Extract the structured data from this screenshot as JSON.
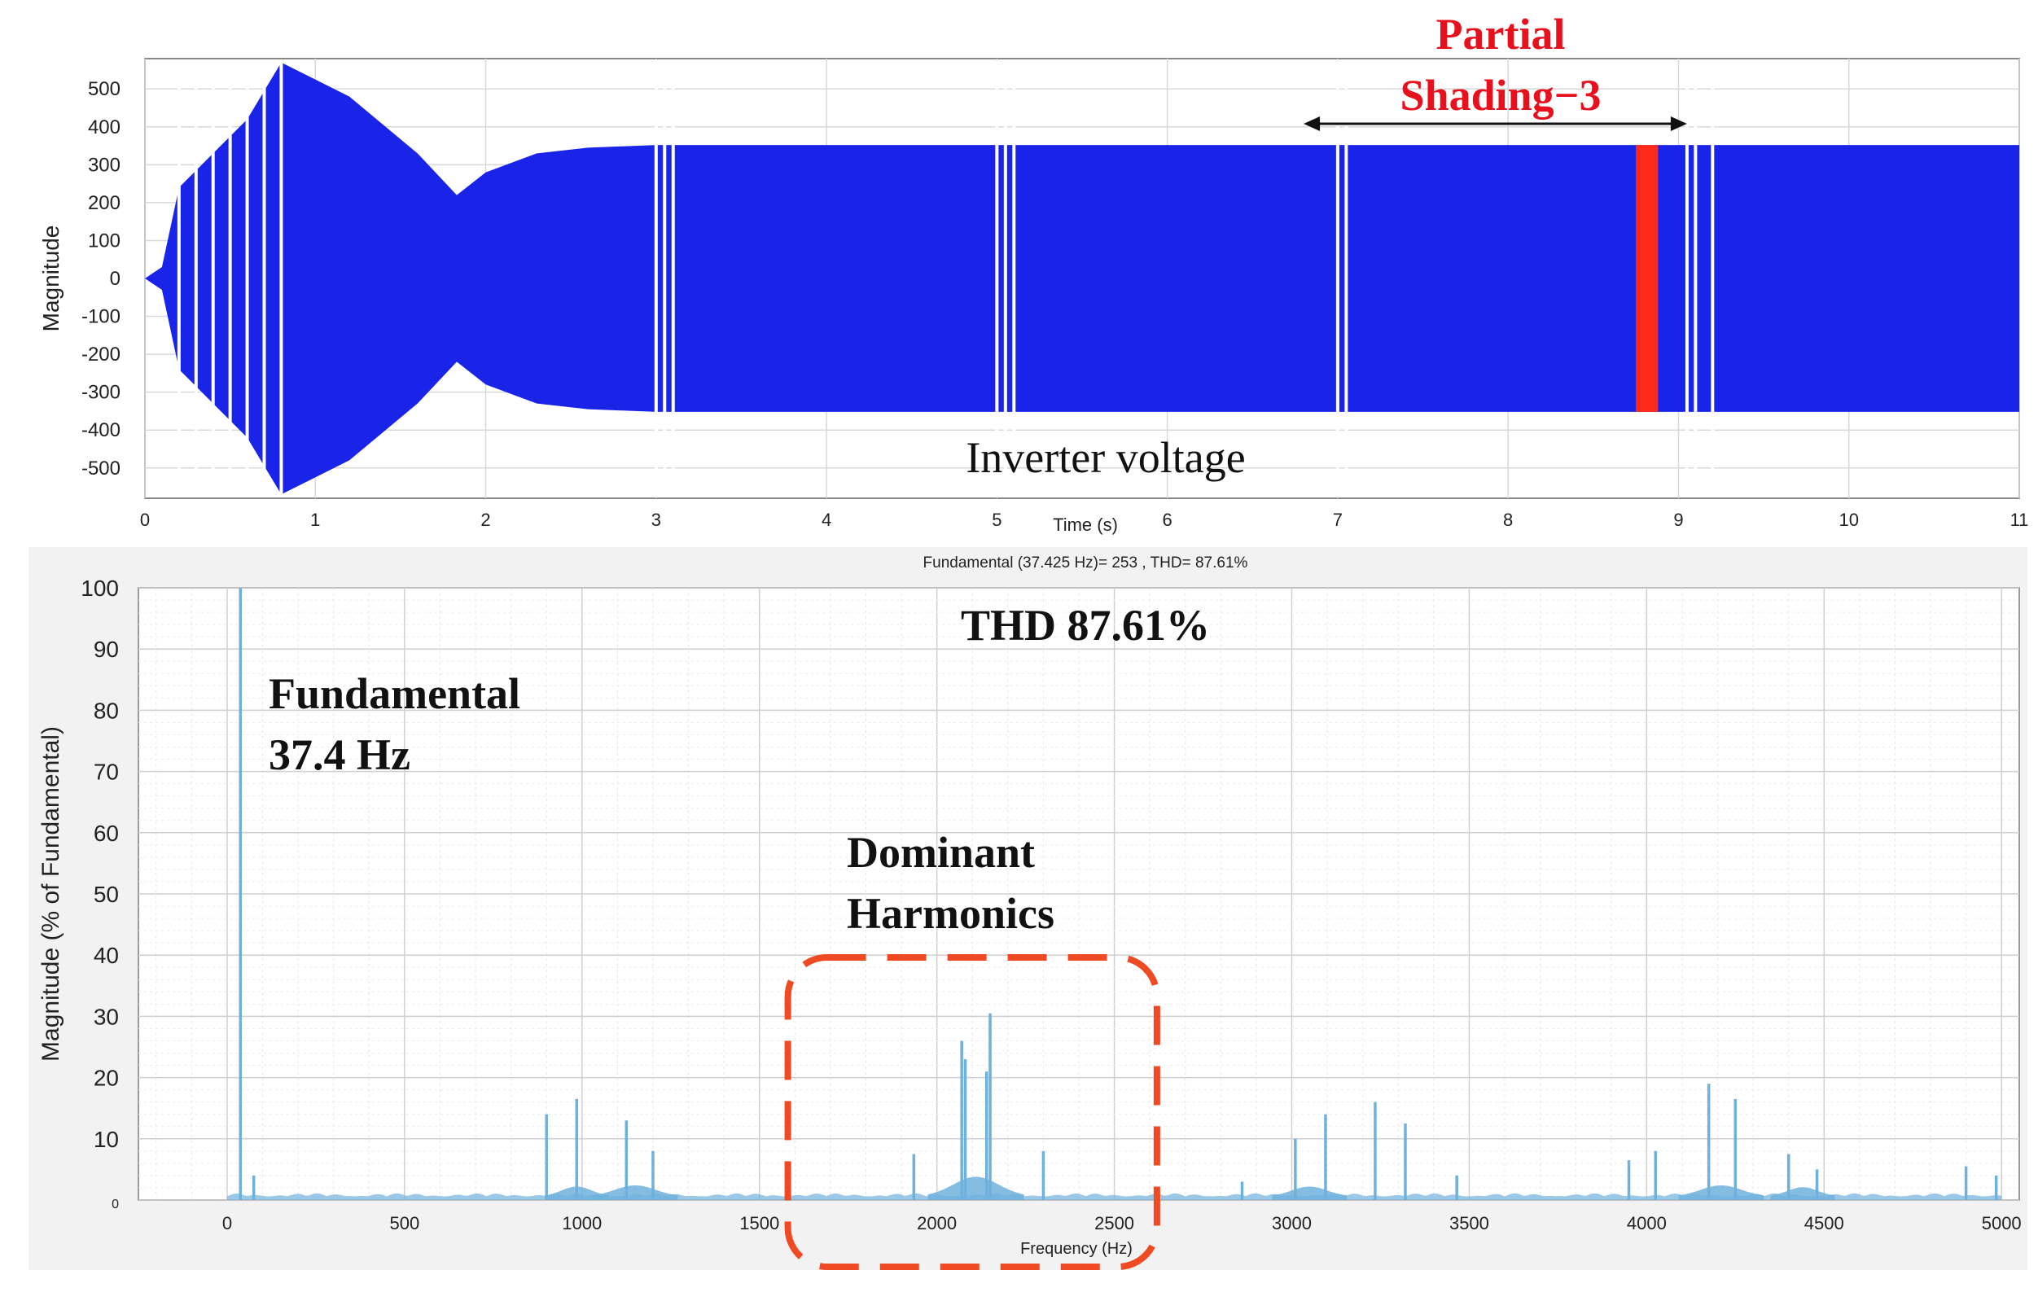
{
  "colors": {
    "waveform": "#1a24e8",
    "shading_band": "#ff2a1a",
    "spectrum": "#6fb1dc",
    "annotation_red": "#e8101c",
    "box_dash": "#ef4a23",
    "grid": "#d8d8d8",
    "plot_bg": "#ffffff",
    "panel_bg": "#f2f2f2"
  },
  "chart_data": [
    {
      "type": "line",
      "title": "",
      "xlabel": "Time (s)",
      "ylabel": "Magnitude",
      "xlim": [
        0,
        11
      ],
      "ylim": [
        -580,
        580
      ],
      "x_ticks": [
        0,
        1,
        2,
        3,
        4,
        5,
        6,
        7,
        8,
        9,
        10,
        11
      ],
      "y_ticks": [
        500,
        400,
        300,
        200,
        100,
        0,
        -100,
        -200,
        -300,
        -400,
        -500
      ],
      "grid": true,
      "series": [
        {
          "envelope": [
            {
              "x": 0,
              "y": 0
            },
            {
              "x": 0.1,
              "y": 30
            },
            {
              "x": 0.2,
              "y": 240
            },
            {
              "x": 0.4,
              "y": 330
            },
            {
              "x": 0.6,
              "y": 420
            },
            {
              "x": 0.8,
              "y": 570
            },
            {
              "x": 1.2,
              "y": 480
            },
            {
              "x": 1.6,
              "y": 330
            },
            {
              "x": 1.83,
              "y": 220
            },
            {
              "x": 2.0,
              "y": 280
            },
            {
              "x": 2.3,
              "y": 330
            },
            {
              "x": 2.6,
              "y": 345
            },
            {
              "x": 3.0,
              "y": 352
            },
            {
              "x": 11,
              "y": 352
            }
          ],
          "gaps": [
            0.2,
            0.3,
            0.4,
            0.5,
            0.6,
            0.7,
            0.8,
            3.0,
            3.05,
            3.1,
            5.0,
            5.05,
            5.1,
            7.0,
            7.05,
            9.05,
            9.1,
            9.2
          ]
        }
      ],
      "annotations": {
        "signal_label": "Inverter voltage",
        "shading_label_line1": "Partial",
        "shading_label_line2": "Shading−3",
        "shading_span": [
          6.8,
          9.05
        ],
        "shading_band": [
          8.75,
          8.88
        ]
      }
    },
    {
      "type": "bar",
      "title": "Fundamental (37.425 Hz)= 253 , THD= 87.61%",
      "xlabel": "Frequency  (Hz)",
      "ylabel": "Magnitude (% of Fundamental)",
      "xlim": [
        -250,
        5050
      ],
      "ylim": [
        0,
        100
      ],
      "x_ticks": [
        0,
        500,
        1000,
        1500,
        2000,
        2500,
        3000,
        3500,
        4000,
        4500,
        5000
      ],
      "y_ticks": [
        100,
        90,
        80,
        70,
        60,
        50,
        40,
        30,
        20,
        10,
        0
      ],
      "grid": true,
      "harmonics": [
        {
          "f": 37.4,
          "v": 100
        },
        {
          "f": 75,
          "v": 4
        },
        {
          "f": 900,
          "v": 14
        },
        {
          "f": 985,
          "v": 16.5
        },
        {
          "f": 1125,
          "v": 13
        },
        {
          "f": 1200,
          "v": 8
        },
        {
          "f": 1935,
          "v": 7.5
        },
        {
          "f": 2070,
          "v": 26
        },
        {
          "f": 2080,
          "v": 23
        },
        {
          "f": 2140,
          "v": 21
        },
        {
          "f": 2150,
          "v": 30.5
        },
        {
          "f": 2300,
          "v": 8
        },
        {
          "f": 2860,
          "v": 3
        },
        {
          "f": 3010,
          "v": 10
        },
        {
          "f": 3095,
          "v": 14
        },
        {
          "f": 3235,
          "v": 16
        },
        {
          "f": 3320,
          "v": 12.5
        },
        {
          "f": 3465,
          "v": 4
        },
        {
          "f": 3950,
          "v": 6.5
        },
        {
          "f": 4025,
          "v": 8
        },
        {
          "f": 4175,
          "v": 19
        },
        {
          "f": 4250,
          "v": 16.5
        },
        {
          "f": 4400,
          "v": 7.5
        },
        {
          "f": 4480,
          "v": 5
        },
        {
          "f": 4900,
          "v": 5.5
        },
        {
          "f": 4985,
          "v": 4
        }
      ],
      "annotations": {
        "thd_label": "THD 87.61%",
        "fundamental_line1": "Fundamental",
        "fundamental_line2": "37.4 Hz",
        "dominant_line1": "Dominant",
        "dominant_line2": "Harmonics",
        "dominant_box_range": [
          1580,
          2620
        ]
      }
    }
  ]
}
